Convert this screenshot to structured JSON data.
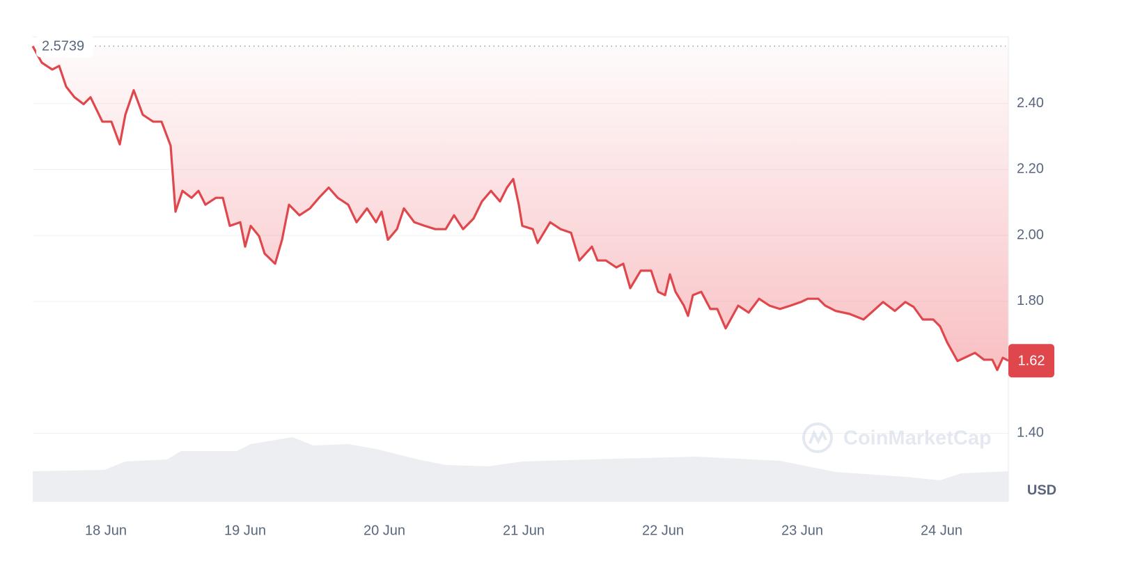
{
  "chart_data": {
    "type": "line",
    "series": [
      {
        "color": "#e0474c",
        "x": [
          17.475,
          17.54,
          17.575,
          17.615,
          17.665,
          17.715,
          17.775,
          17.84,
          17.89,
          17.975,
          18.04,
          18.1,
          18.14,
          18.2,
          18.265,
          18.34,
          18.4,
          18.465,
          18.5,
          18.55,
          18.615,
          18.665,
          18.715,
          18.79,
          18.84,
          18.89,
          18.965,
          19.0,
          19.04,
          19.1,
          19.14,
          19.215,
          19.265,
          19.315,
          19.39,
          19.465,
          19.53,
          19.6,
          19.665,
          19.74,
          19.8,
          19.875,
          19.94,
          19.98,
          20.025,
          20.09,
          20.14,
          20.215,
          20.29,
          20.365,
          20.44,
          20.5,
          20.565,
          20.64,
          20.7,
          20.765,
          20.83,
          20.88,
          20.925,
          20.965,
          20.99,
          21.065,
          21.1,
          21.19,
          21.265,
          21.34,
          21.4,
          21.49,
          21.53,
          21.59,
          21.665,
          21.715,
          21.765,
          21.84,
          21.915,
          21.965,
          22.015,
          22.05,
          22.09,
          22.15,
          22.18,
          22.215,
          22.275,
          22.34,
          22.39,
          22.45,
          22.54,
          22.615,
          22.69,
          22.765,
          22.84,
          22.915,
          22.99,
          23.04,
          23.115,
          23.165,
          23.24,
          23.34,
          23.44,
          23.515,
          23.58,
          23.665,
          23.74,
          23.8,
          23.865,
          23.94,
          23.99,
          24.04,
          24.115,
          24.165,
          24.24,
          24.305,
          24.365,
          24.4,
          24.44,
          24.48
        ],
        "values": [
          2.574,
          2.524,
          2.514,
          2.503,
          2.514,
          2.451,
          2.419,
          2.398,
          2.419,
          2.345,
          2.345,
          2.276,
          2.366,
          2.44,
          2.366,
          2.345,
          2.345,
          2.272,
          2.072,
          2.135,
          2.114,
          2.135,
          2.093,
          2.114,
          2.114,
          2.029,
          2.04,
          1.966,
          2.029,
          1.998,
          1.945,
          1.914,
          1.987,
          2.093,
          2.061,
          2.082,
          2.114,
          2.145,
          2.114,
          2.093,
          2.04,
          2.082,
          2.04,
          2.072,
          1.987,
          2.019,
          2.082,
          2.04,
          2.029,
          2.019,
          2.019,
          2.061,
          2.019,
          2.051,
          2.103,
          2.135,
          2.103,
          2.145,
          2.171,
          2.093,
          2.029,
          2.019,
          1.977,
          2.04,
          2.019,
          2.008,
          1.924,
          1.966,
          1.924,
          1.924,
          1.903,
          1.914,
          1.84,
          1.893,
          1.893,
          1.829,
          1.819,
          1.882,
          1.829,
          1.787,
          1.756,
          1.819,
          1.829,
          1.777,
          1.777,
          1.718,
          1.787,
          1.766,
          1.808,
          1.787,
          1.777,
          1.787,
          1.798,
          1.808,
          1.808,
          1.787,
          1.771,
          1.762,
          1.745,
          1.773,
          1.798,
          1.771,
          1.798,
          1.783,
          1.745,
          1.745,
          1.724,
          1.676,
          1.619,
          1.629,
          1.644,
          1.623,
          1.623,
          1.592,
          1.629,
          1.62
        ]
      }
    ],
    "xlim": [
      17.475,
      24.48
    ],
    "xticks": [
      {
        "value": 18,
        "label": "18 Jun"
      },
      {
        "value": 19,
        "label": "19 Jun"
      },
      {
        "value": 20,
        "label": "20 Jun"
      },
      {
        "value": 21,
        "label": "21 Jun"
      },
      {
        "value": 22,
        "label": "22 Jun"
      },
      {
        "value": 23,
        "label": "23 Jun"
      },
      {
        "value": 24,
        "label": "24 Jun"
      }
    ],
    "ylim": [
      1.192,
      2.602
    ],
    "yticks": [
      {
        "value": 1.4,
        "label": "1.40"
      },
      {
        "value": 1.8,
        "label": "1.80"
      },
      {
        "value": 2,
        "label": "2.00"
      },
      {
        "value": 2.2,
        "label": "2.20"
      },
      {
        "value": 2.4,
        "label": "2.40"
      }
    ],
    "grid": true,
    "max_value": 2.5739,
    "last_price": 1.62,
    "unit": "USD",
    "watermark": "CoinMarketCap",
    "volume": {
      "color": "#eceef2",
      "x": [
        17.475,
        17.99,
        18.14,
        18.44,
        18.54,
        18.94,
        19.04,
        19.34,
        19.49,
        19.74,
        19.94,
        20.24,
        20.44,
        20.74,
        20.99,
        21.49,
        22.24,
        22.44,
        22.84,
        23.24,
        23.74,
        23.99,
        24.14,
        24.48
      ],
      "values": [
        44,
        46,
        58,
        61,
        73,
        73,
        83,
        93,
        81,
        83,
        76,
        61,
        53,
        51,
        58,
        61,
        65,
        63,
        59,
        43,
        36,
        31,
        41,
        44
      ]
    }
  }
}
